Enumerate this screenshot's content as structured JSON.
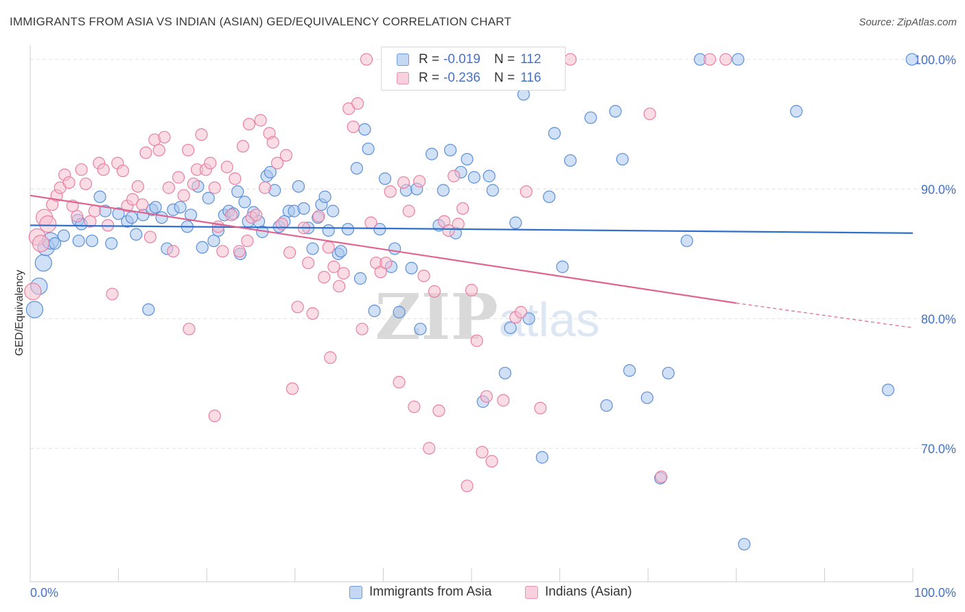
{
  "title": "IMMIGRANTS FROM ASIA VS INDIAN (ASIAN) GED/EQUIVALENCY CORRELATION CHART",
  "source": "Source: ZipAtlas.com",
  "watermark": {
    "zip": "ZIP",
    "atlas": "atlas"
  },
  "legend": {
    "rows": [
      {
        "r_label": "R =",
        "r_value": "-0.019",
        "n_label": "N =",
        "n_value": "112"
      },
      {
        "r_label": "R =",
        "r_value": "-0.236",
        "n_label": "N =",
        "n_value": "116"
      }
    ]
  },
  "bottom_legend": [
    "Immigrants from Asia",
    "Indians (Asian)"
  ],
  "colors": {
    "blue_fill": "#a9c6ee",
    "blue_stroke": "#5b8fd8",
    "blue_line": "#2f6fcc",
    "pink_fill": "#f6bfd0",
    "pink_stroke": "#e87fa2",
    "pink_line": "#e0628e",
    "tick_text": "#4472c4",
    "grid": "#e2e2e2"
  },
  "chart_data": {
    "type": "scatter",
    "title": "IMMIGRANTS FROM ASIA VS INDIAN (ASIAN) GED/EQUIVALENCY CORRELATION CHART",
    "xlabel": "",
    "ylabel": "GED/Equivalency",
    "xlim": [
      0,
      100
    ],
    "ylim": [
      59.7,
      101.3
    ],
    "x_tick_labels": [
      "0.0%",
      "100.0%"
    ],
    "y_ticks": [
      70,
      80,
      90,
      100
    ],
    "y_tick_labels": [
      "70.0%",
      "80.0%",
      "90.0%",
      "100.0%"
    ],
    "grid": true,
    "legend_position": "top-center",
    "series": [
      {
        "name": "Immigrants from Asia",
        "color": "#5b8fd8",
        "trend": {
          "x": [
            0,
            100
          ],
          "y": [
            87.2,
            86.6
          ]
        },
        "points": [
          [
            0.5,
            80.7
          ],
          [
            1.0,
            82.5
          ],
          [
            1.5,
            84.3
          ],
          [
            1.8,
            85.5
          ],
          [
            2.3,
            86.0
          ],
          [
            2.8,
            85.8
          ],
          [
            3.8,
            86.4
          ],
          [
            5.4,
            87.6
          ],
          [
            5.8,
            87.3
          ],
          [
            5.5,
            86.0
          ],
          [
            7.0,
            86.0
          ],
          [
            7.9,
            89.4
          ],
          [
            8.5,
            88.3
          ],
          [
            9.2,
            85.8
          ],
          [
            10.0,
            88.1
          ],
          [
            11.0,
            87.5
          ],
          [
            11.5,
            87.8
          ],
          [
            12.0,
            86.5
          ],
          [
            12.8,
            88.0
          ],
          [
            13.4,
            80.7
          ],
          [
            13.8,
            88.4
          ],
          [
            14.2,
            88.6
          ],
          [
            14.9,
            87.8
          ],
          [
            15.5,
            85.4
          ],
          [
            16.2,
            88.4
          ],
          [
            17.0,
            88.6
          ],
          [
            17.8,
            87.1
          ],
          [
            18.2,
            88.0
          ],
          [
            19.0,
            90.2
          ],
          [
            19.5,
            85.5
          ],
          [
            20.2,
            89.3
          ],
          [
            20.8,
            86.0
          ],
          [
            21.3,
            86.8
          ],
          [
            22.0,
            88.0
          ],
          [
            22.5,
            88.3
          ],
          [
            23.0,
            88.1
          ],
          [
            23.5,
            89.8
          ],
          [
            23.8,
            85.0
          ],
          [
            24.3,
            89.0
          ],
          [
            24.7,
            87.5
          ],
          [
            25.3,
            88.2
          ],
          [
            25.9,
            87.5
          ],
          [
            26.3,
            86.7
          ],
          [
            26.8,
            91.0
          ],
          [
            27.2,
            91.3
          ],
          [
            27.7,
            89.9
          ],
          [
            28.2,
            87.1
          ],
          [
            28.8,
            87.5
          ],
          [
            29.3,
            88.3
          ],
          [
            29.9,
            88.3
          ],
          [
            30.4,
            90.2
          ],
          [
            31.0,
            88.5
          ],
          [
            31.5,
            87.0
          ],
          [
            32.0,
            85.4
          ],
          [
            32.6,
            87.8
          ],
          [
            33.0,
            88.8
          ],
          [
            33.4,
            89.4
          ],
          [
            33.8,
            86.8
          ],
          [
            34.3,
            88.3
          ],
          [
            34.9,
            85.0
          ],
          [
            35.2,
            85.2
          ],
          [
            36.0,
            86.9
          ],
          [
            37.0,
            91.6
          ],
          [
            37.4,
            83.1
          ],
          [
            37.9,
            94.6
          ],
          [
            38.3,
            93.1
          ],
          [
            39.0,
            80.6
          ],
          [
            39.6,
            86.9
          ],
          [
            40.2,
            90.8
          ],
          [
            40.9,
            84.0
          ],
          [
            41.3,
            85.4
          ],
          [
            41.8,
            80.5
          ],
          [
            42.6,
            89.9
          ],
          [
            43.2,
            83.9
          ],
          [
            43.8,
            90.0
          ],
          [
            44.2,
            79.2
          ],
          [
            45.5,
            92.7
          ],
          [
            46.3,
            87.2
          ],
          [
            46.8,
            89.9
          ],
          [
            47.6,
            93.0
          ],
          [
            48.2,
            86.6
          ],
          [
            48.8,
            91.3
          ],
          [
            49.5,
            92.3
          ],
          [
            50.3,
            90.9
          ],
          [
            51.3,
            73.6
          ],
          [
            52.0,
            91.0
          ],
          [
            52.4,
            89.9
          ],
          [
            53.8,
            75.8
          ],
          [
            54.4,
            79.3
          ],
          [
            55.0,
            87.4
          ],
          [
            56.5,
            80.0
          ],
          [
            58.0,
            69.3
          ],
          [
            58.8,
            89.4
          ],
          [
            59.4,
            94.3
          ],
          [
            60.3,
            84.0
          ],
          [
            61.2,
            92.2
          ],
          [
            63.5,
            95.5
          ],
          [
            65.3,
            73.3
          ],
          [
            66.3,
            96.0
          ],
          [
            67.1,
            92.3
          ],
          [
            67.9,
            76.0
          ],
          [
            69.9,
            73.9
          ],
          [
            71.4,
            67.7
          ],
          [
            72.3,
            75.8
          ],
          [
            74.4,
            86.0
          ],
          [
            75.9,
            100.0
          ],
          [
            80.2,
            100.0
          ],
          [
            80.9,
            62.6
          ],
          [
            86.8,
            96.0
          ],
          [
            97.2,
            74.5
          ],
          [
            99.9,
            100.0
          ],
          [
            55.9,
            97.3
          ]
        ]
      },
      {
        "name": "Indians (Asian)",
        "color": "#e87fa2",
        "trend": {
          "x": [
            0,
            80
          ],
          "y": [
            89.5,
            81.2
          ]
        },
        "trend_dashed_to": {
          "x": 100,
          "y": 79.3
        },
        "points": [
          [
            0.3,
            82.1
          ],
          [
            0.8,
            86.3
          ],
          [
            1.2,
            85.8
          ],
          [
            1.6,
            87.8
          ],
          [
            2.0,
            87.3
          ],
          [
            2.5,
            88.8
          ],
          [
            3.0,
            89.5
          ],
          [
            3.4,
            90.1
          ],
          [
            3.9,
            91.1
          ],
          [
            4.4,
            90.5
          ],
          [
            4.8,
            88.7
          ],
          [
            5.3,
            87.9
          ],
          [
            5.8,
            91.5
          ],
          [
            6.3,
            90.4
          ],
          [
            6.8,
            87.5
          ],
          [
            7.3,
            88.3
          ],
          [
            7.8,
            92.0
          ],
          [
            8.3,
            91.5
          ],
          [
            8.8,
            87.2
          ],
          [
            9.3,
            81.9
          ],
          [
            9.9,
            92.0
          ],
          [
            10.5,
            91.4
          ],
          [
            11.0,
            88.7
          ],
          [
            11.6,
            89.2
          ],
          [
            12.2,
            90.2
          ],
          [
            12.7,
            88.8
          ],
          [
            13.1,
            92.8
          ],
          [
            13.6,
            86.3
          ],
          [
            14.1,
            93.8
          ],
          [
            14.6,
            93.0
          ],
          [
            15.2,
            94.0
          ],
          [
            15.7,
            90.1
          ],
          [
            16.2,
            85.2
          ],
          [
            16.8,
            90.9
          ],
          [
            17.4,
            89.5
          ],
          [
            17.9,
            93.0
          ],
          [
            18.5,
            90.4
          ],
          [
            18.9,
            91.5
          ],
          [
            19.4,
            94.2
          ],
          [
            19.9,
            91.5
          ],
          [
            20.4,
            92.0
          ],
          [
            20.9,
            90.1
          ],
          [
            21.3,
            87.1
          ],
          [
            21.8,
            85.2
          ],
          [
            22.3,
            91.7
          ],
          [
            22.8,
            88.0
          ],
          [
            23.2,
            90.8
          ],
          [
            23.7,
            85.2
          ],
          [
            24.1,
            93.3
          ],
          [
            24.6,
            86.0
          ],
          [
            25.1,
            87.8
          ],
          [
            25.6,
            88.0
          ],
          [
            26.1,
            95.3
          ],
          [
            26.6,
            90.1
          ],
          [
            27.1,
            94.3
          ],
          [
            27.5,
            93.6
          ],
          [
            28.0,
            92.0
          ],
          [
            28.5,
            87.3
          ],
          [
            29.0,
            92.6
          ],
          [
            29.4,
            85.1
          ],
          [
            30.3,
            80.9
          ],
          [
            31.0,
            87.0
          ],
          [
            31.5,
            84.3
          ],
          [
            32.0,
            80.4
          ],
          [
            32.7,
            87.9
          ],
          [
            33.3,
            83.2
          ],
          [
            33.8,
            85.5
          ],
          [
            34.4,
            84.0
          ],
          [
            35.0,
            82.5
          ],
          [
            35.5,
            83.5
          ],
          [
            36.1,
            96.2
          ],
          [
            36.6,
            94.8
          ],
          [
            37.1,
            96.6
          ],
          [
            37.6,
            79.2
          ],
          [
            38.1,
            100.0
          ],
          [
            38.6,
            87.4
          ],
          [
            39.2,
            84.3
          ],
          [
            39.7,
            83.6
          ],
          [
            40.3,
            84.3
          ],
          [
            40.8,
            89.8
          ],
          [
            41.8,
            75.1
          ],
          [
            42.3,
            90.5
          ],
          [
            42.9,
            88.3
          ],
          [
            43.5,
            73.2
          ],
          [
            44.1,
            90.6
          ],
          [
            44.6,
            83.3
          ],
          [
            45.2,
            70.0
          ],
          [
            45.8,
            82.1
          ],
          [
            46.3,
            72.9
          ],
          [
            46.9,
            87.5
          ],
          [
            47.4,
            86.8
          ],
          [
            48.0,
            91.0
          ],
          [
            48.5,
            87.3
          ],
          [
            49.0,
            88.5
          ],
          [
            49.5,
            67.1
          ],
          [
            50.0,
            82.2
          ],
          [
            50.6,
            78.3
          ],
          [
            51.2,
            69.7
          ],
          [
            51.7,
            74.0
          ],
          [
            52.3,
            69.0
          ],
          [
            53.6,
            73.7
          ],
          [
            55.0,
            80.1
          ],
          [
            55.6,
            80.5
          ],
          [
            56.2,
            89.8
          ],
          [
            57.8,
            73.1
          ],
          [
            59.6,
            100.0
          ],
          [
            61.2,
            100.0
          ],
          [
            70.2,
            95.8
          ],
          [
            71.5,
            67.8
          ],
          [
            77.0,
            100.0
          ],
          [
            78.8,
            100.0
          ],
          [
            24.8,
            95.0
          ],
          [
            18.0,
            79.2
          ],
          [
            20.9,
            72.5
          ],
          [
            29.7,
            74.6
          ],
          [
            34.0,
            77.0
          ]
        ]
      }
    ]
  }
}
